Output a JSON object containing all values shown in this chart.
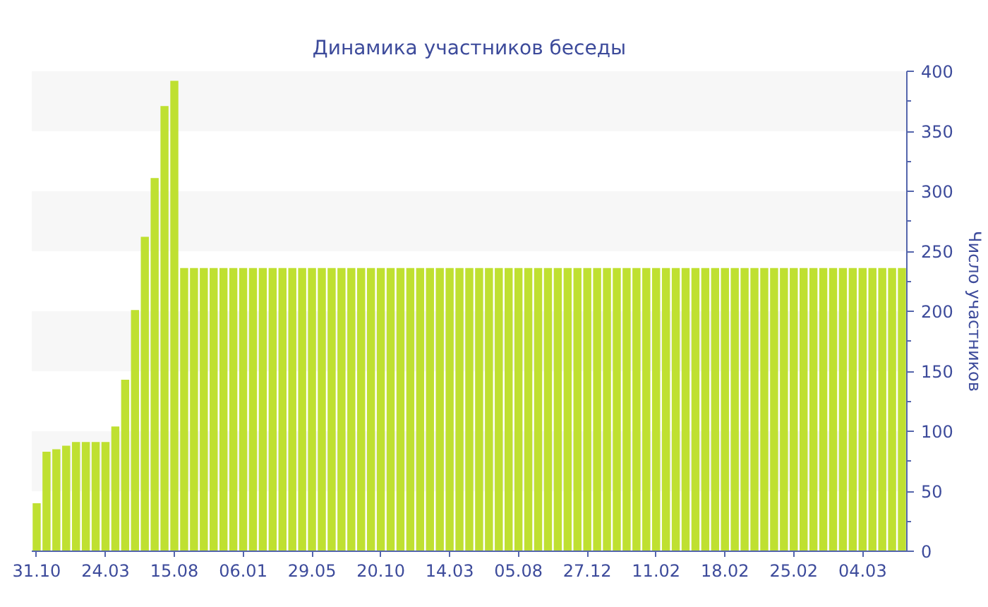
{
  "chart_data": {
    "type": "bar",
    "title": "Динамика участников беседы",
    "ylabel": "Число участников",
    "categories": [
      "31.10",
      null,
      null,
      null,
      null,
      null,
      null,
      "24.03",
      null,
      null,
      null,
      null,
      null,
      null,
      "15.08",
      null,
      null,
      null,
      null,
      null,
      null,
      "06.01",
      null,
      null,
      null,
      null,
      null,
      null,
      "29.05",
      null,
      null,
      null,
      null,
      null,
      null,
      "20.10",
      null,
      null,
      null,
      null,
      null,
      null,
      "14.03",
      null,
      null,
      null,
      null,
      null,
      null,
      "05.08",
      null,
      null,
      null,
      null,
      null,
      null,
      "27.12",
      null,
      null,
      null,
      null,
      null,
      null,
      "11.02",
      null,
      null,
      null,
      null,
      null,
      null,
      "18.02",
      null,
      null,
      null,
      null,
      null,
      null,
      "25.02",
      null,
      null,
      null,
      null,
      null,
      null,
      "04.03",
      null,
      null,
      null,
      null
    ],
    "values": [
      40,
      83,
      85,
      88,
      91,
      91,
      91,
      91,
      104,
      143,
      201,
      262,
      311,
      371,
      392,
      236,
      236,
      236,
      236,
      236,
      236,
      236,
      236,
      236,
      236,
      236,
      236,
      236,
      236,
      236,
      236,
      236,
      236,
      236,
      236,
      236,
      236,
      236,
      236,
      236,
      236,
      236,
      236,
      236,
      236,
      236,
      236,
      236,
      236,
      236,
      236,
      236,
      236,
      236,
      236,
      236,
      236,
      236,
      236,
      236,
      236,
      236,
      236,
      236,
      236,
      236,
      236,
      236,
      236,
      236,
      236,
      236,
      236,
      236,
      236,
      236,
      236,
      236,
      236,
      236,
      236,
      236,
      236,
      236,
      236,
      236,
      236,
      236,
      236
    ],
    "color": "#bfe031",
    "ylim": [
      0,
      400
    ],
    "yticks": [
      0,
      50,
      100,
      150,
      200,
      250,
      300,
      350,
      400
    ],
    "bands": [
      {
        "axis": "y",
        "from": 50,
        "to": 100,
        "color": "#f7f7f7"
      },
      {
        "axis": "y",
        "from": 150,
        "to": 200,
        "color": "#f7f7f7"
      },
      {
        "axis": "y",
        "from": 250,
        "to": 300,
        "color": "#f7f7f7"
      },
      {
        "axis": "y",
        "from": 350,
        "to": 400,
        "color": "#f7f7f7"
      }
    ]
  }
}
